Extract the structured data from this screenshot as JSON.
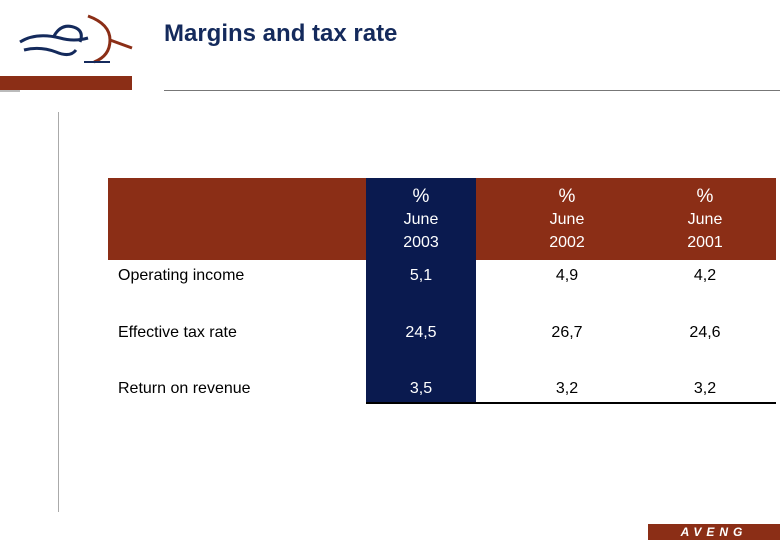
{
  "title": "Margins and tax rate",
  "brand": {
    "footer": "AVENG",
    "accent_color": "#8b2e16",
    "highlight_color": "#0a1a4f"
  },
  "table": {
    "columns": [
      {
        "unit": "%",
        "month": "June",
        "year": "2003"
      },
      {
        "unit": "%",
        "month": "June",
        "year": "2002"
      },
      {
        "unit": "%",
        "month": "June",
        "year": "2001"
      }
    ],
    "rows": [
      {
        "label": "Operating income",
        "values": [
          "5,1",
          "4,9",
          "4,2"
        ]
      },
      {
        "label": "Effective tax rate",
        "values": [
          "24,5",
          "26,7",
          "24,6"
        ]
      },
      {
        "label": "Return on revenue",
        "values": [
          "3,5",
          "3,2",
          "3,2"
        ]
      }
    ]
  }
}
